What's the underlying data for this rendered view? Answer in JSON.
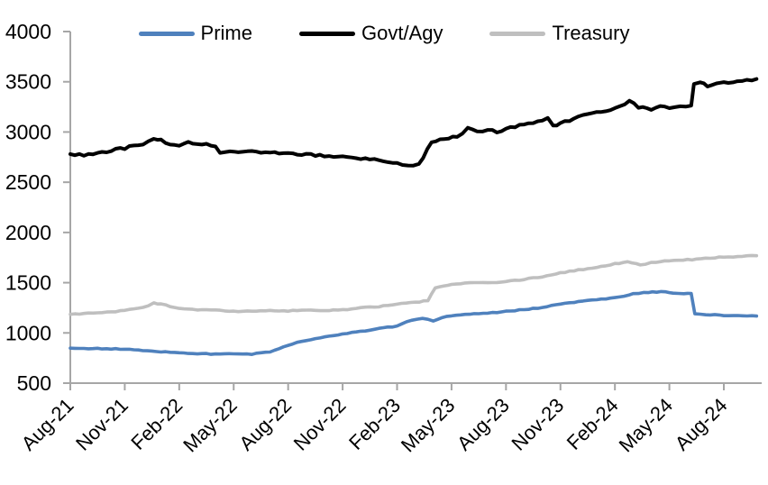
{
  "chart_data": {
    "type": "line",
    "title": "",
    "grid": false,
    "legend_position": "top",
    "axis_color": "#a6a6a6",
    "text_color": "#000000",
    "background_color": "#ffffff",
    "y_range": [
      500,
      4000
    ],
    "y_ticks": [
      500,
      1000,
      1500,
      2000,
      2500,
      3000,
      3500,
      4000
    ],
    "x_unit": "months since Aug-21",
    "x_range_months": [
      0,
      38
    ],
    "x_tick_labels": [
      "Aug-21",
      "Nov-21",
      "Feb-22",
      "May-22",
      "Aug-22",
      "Nov-22",
      "Feb-23",
      "May-23",
      "Aug-23",
      "Nov-23",
      "Feb-24",
      "May-24",
      "Aug-24"
    ],
    "x_tick_months": [
      0,
      3,
      6,
      9,
      12,
      15,
      18,
      21,
      24,
      27,
      30,
      33,
      36
    ],
    "series": [
      {
        "name": "Prime",
        "color": "#4f81bd",
        "jitter": 4,
        "points": [
          [
            0,
            848
          ],
          [
            1,
            845
          ],
          [
            2,
            843
          ],
          [
            3,
            838
          ],
          [
            4,
            826
          ],
          [
            5,
            813
          ],
          [
            6,
            801
          ],
          [
            7,
            794
          ],
          [
            8,
            789
          ],
          [
            9,
            790
          ],
          [
            10,
            788
          ],
          [
            11,
            812
          ],
          [
            12,
            880
          ],
          [
            13,
            926
          ],
          [
            14,
            958
          ],
          [
            15,
            988
          ],
          [
            16,
            1014
          ],
          [
            17,
            1044
          ],
          [
            18,
            1068
          ],
          [
            18.8,
            1128
          ],
          [
            19.4,
            1145
          ],
          [
            20,
            1118
          ],
          [
            20.5,
            1150
          ],
          [
            21,
            1172
          ],
          [
            22,
            1186
          ],
          [
            23,
            1196
          ],
          [
            24,
            1214
          ],
          [
            25,
            1233
          ],
          [
            26,
            1252
          ],
          [
            27,
            1288
          ],
          [
            28,
            1310
          ],
          [
            29,
            1332
          ],
          [
            30,
            1348
          ],
          [
            31,
            1388
          ],
          [
            31.6,
            1400
          ],
          [
            32.3,
            1408
          ],
          [
            32.8,
            1412
          ],
          [
            33.2,
            1398
          ],
          [
            33.8,
            1393
          ],
          [
            34.2,
            1392
          ],
          [
            34.4,
            1190
          ],
          [
            35,
            1183
          ],
          [
            36,
            1175
          ],
          [
            37.8,
            1168
          ]
        ]
      },
      {
        "name": "Govt/Agy",
        "color": "#000000",
        "jitter": 11,
        "points": [
          [
            0,
            2780
          ],
          [
            1,
            2772
          ],
          [
            2,
            2806
          ],
          [
            3,
            2840
          ],
          [
            4,
            2885
          ],
          [
            4.6,
            2938
          ],
          [
            5,
            2918
          ],
          [
            5.5,
            2868
          ],
          [
            6,
            2870
          ],
          [
            6.5,
            2892
          ],
          [
            7,
            2878
          ],
          [
            7.5,
            2888
          ],
          [
            8,
            2852
          ],
          [
            8.25,
            2790
          ],
          [
            8.6,
            2812
          ],
          [
            9,
            2800
          ],
          [
            10,
            2806
          ],
          [
            11,
            2798
          ],
          [
            12,
            2790
          ],
          [
            13,
            2776
          ],
          [
            14,
            2762
          ],
          [
            15,
            2752
          ],
          [
            16,
            2732
          ],
          [
            17,
            2722
          ],
          [
            18,
            2692
          ],
          [
            18.6,
            2662
          ],
          [
            19.2,
            2672
          ],
          [
            19.9,
            2900
          ],
          [
            20.6,
            2938
          ],
          [
            21.3,
            2948
          ],
          [
            21.9,
            3035
          ],
          [
            22.4,
            3010
          ],
          [
            23,
            3018
          ],
          [
            23.5,
            3005
          ],
          [
            24,
            3030
          ],
          [
            25,
            3075
          ],
          [
            26,
            3118
          ],
          [
            26.3,
            3132
          ],
          [
            26.6,
            3062
          ],
          [
            27,
            3082
          ],
          [
            28,
            3148
          ],
          [
            29,
            3192
          ],
          [
            30,
            3238
          ],
          [
            30.8,
            3308
          ],
          [
            31.3,
            3252
          ],
          [
            32,
            3230
          ],
          [
            32.5,
            3252
          ],
          [
            33,
            3242
          ],
          [
            33.6,
            3250
          ],
          [
            34.2,
            3260
          ],
          [
            34.35,
            3478
          ],
          [
            34.7,
            3495
          ],
          [
            35.1,
            3462
          ],
          [
            35.6,
            3478
          ],
          [
            36,
            3492
          ],
          [
            37,
            3510
          ],
          [
            37.8,
            3528
          ]
        ]
      },
      {
        "name": "Treasury",
        "color": "#bfbfbf",
        "jitter": 5,
        "points": [
          [
            0,
            1185
          ],
          [
            1,
            1196
          ],
          [
            2,
            1206
          ],
          [
            3,
            1223
          ],
          [
            4,
            1250
          ],
          [
            4.6,
            1295
          ],
          [
            5,
            1288
          ],
          [
            6,
            1242
          ],
          [
            7,
            1232
          ],
          [
            8,
            1228
          ],
          [
            9,
            1215
          ],
          [
            10,
            1219
          ],
          [
            11,
            1225
          ],
          [
            12,
            1220
          ],
          [
            13,
            1227
          ],
          [
            14,
            1221
          ],
          [
            15,
            1229
          ],
          [
            16,
            1249
          ],
          [
            17,
            1263
          ],
          [
            18,
            1287
          ],
          [
            19,
            1306
          ],
          [
            19.7,
            1322
          ],
          [
            20.1,
            1450
          ],
          [
            20.6,
            1472
          ],
          [
            21,
            1480
          ],
          [
            22,
            1503
          ],
          [
            23,
            1495
          ],
          [
            24,
            1512
          ],
          [
            25,
            1533
          ],
          [
            26,
            1558
          ],
          [
            27,
            1598
          ],
          [
            28,
            1626
          ],
          [
            29,
            1656
          ],
          [
            30,
            1688
          ],
          [
            30.7,
            1706
          ],
          [
            31.4,
            1680
          ],
          [
            32,
            1697
          ],
          [
            33,
            1719
          ],
          [
            34,
            1727
          ],
          [
            35,
            1742
          ],
          [
            36,
            1756
          ],
          [
            37.8,
            1768
          ]
        ]
      }
    ]
  }
}
